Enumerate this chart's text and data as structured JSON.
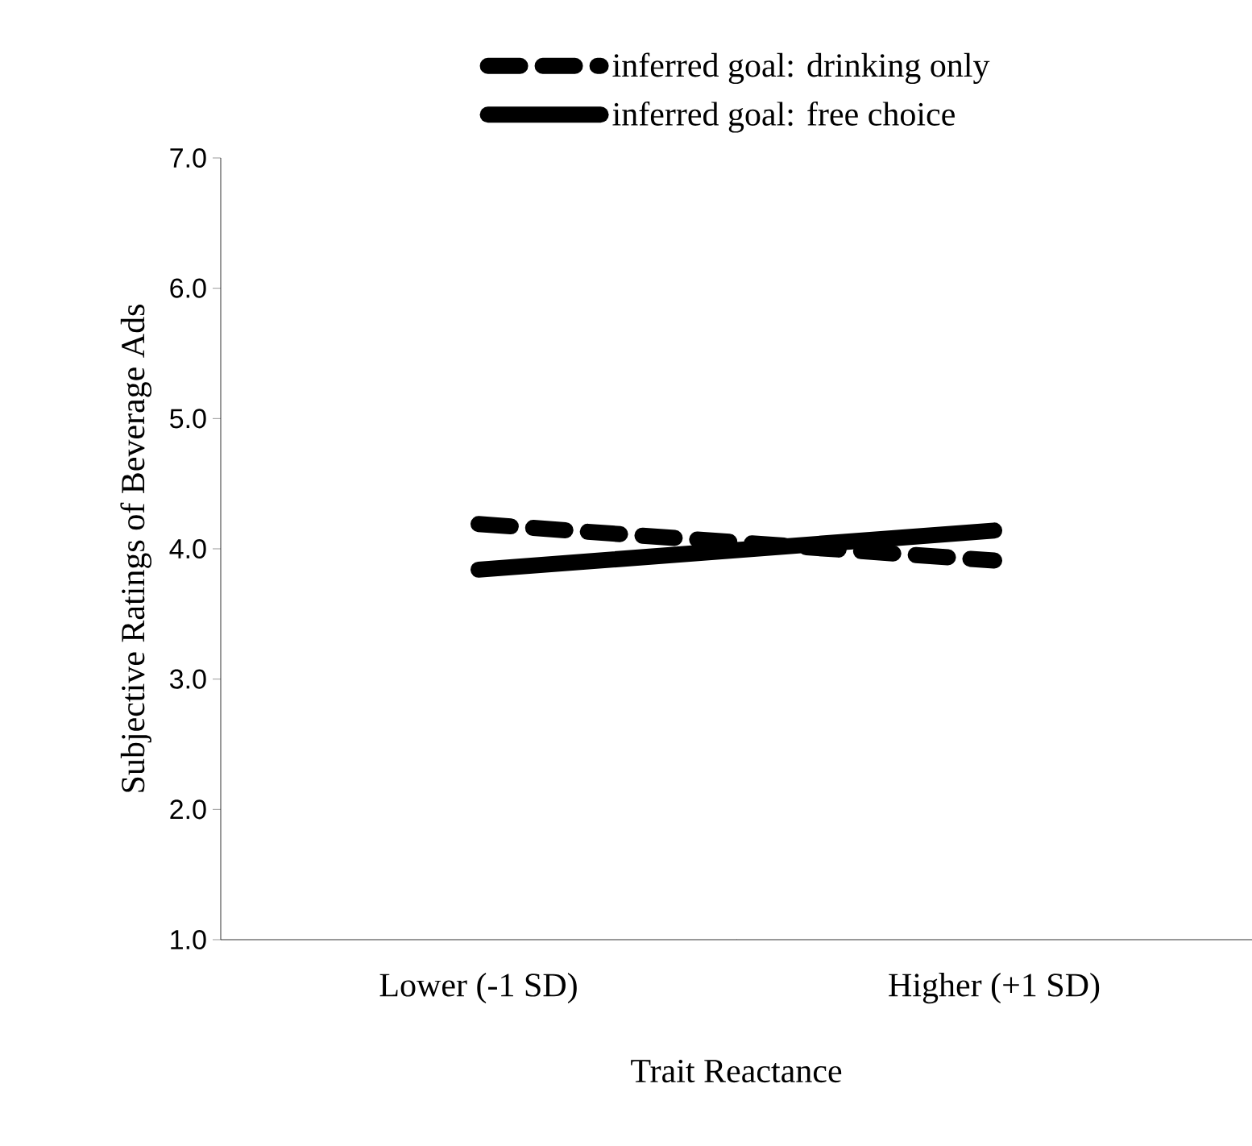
{
  "chart_data": {
    "type": "line",
    "ylabel": "Subjective Ratings of Beverage Ads",
    "xlabel": "Trait Reactance",
    "categories": [
      "Lower (-1 SD)",
      "Higher (+1 SD)"
    ],
    "series": [
      {
        "name": "inferred goal: drinking only",
        "color": "#000000",
        "line_style": "dashed",
        "values": [
          4.19,
          3.91
        ]
      },
      {
        "name": "inferred goal: free choice",
        "color": "#000000",
        "line_style": "solid",
        "values": [
          3.84,
          4.14
        ]
      }
    ],
    "ylim": [
      1.0,
      7.0
    ],
    "yticks": [
      {
        "value": 1,
        "label": "1.0"
      },
      {
        "value": 2,
        "label": "2.0"
      },
      {
        "value": 3,
        "label": "3.0"
      },
      {
        "value": 4,
        "label": "4.0"
      },
      {
        "value": 5,
        "label": "5.0"
      },
      {
        "value": 6,
        "label": "6.0"
      },
      {
        "value": 7,
        "label": "7.0"
      }
    ],
    "legend": "top",
    "marker": "none"
  }
}
